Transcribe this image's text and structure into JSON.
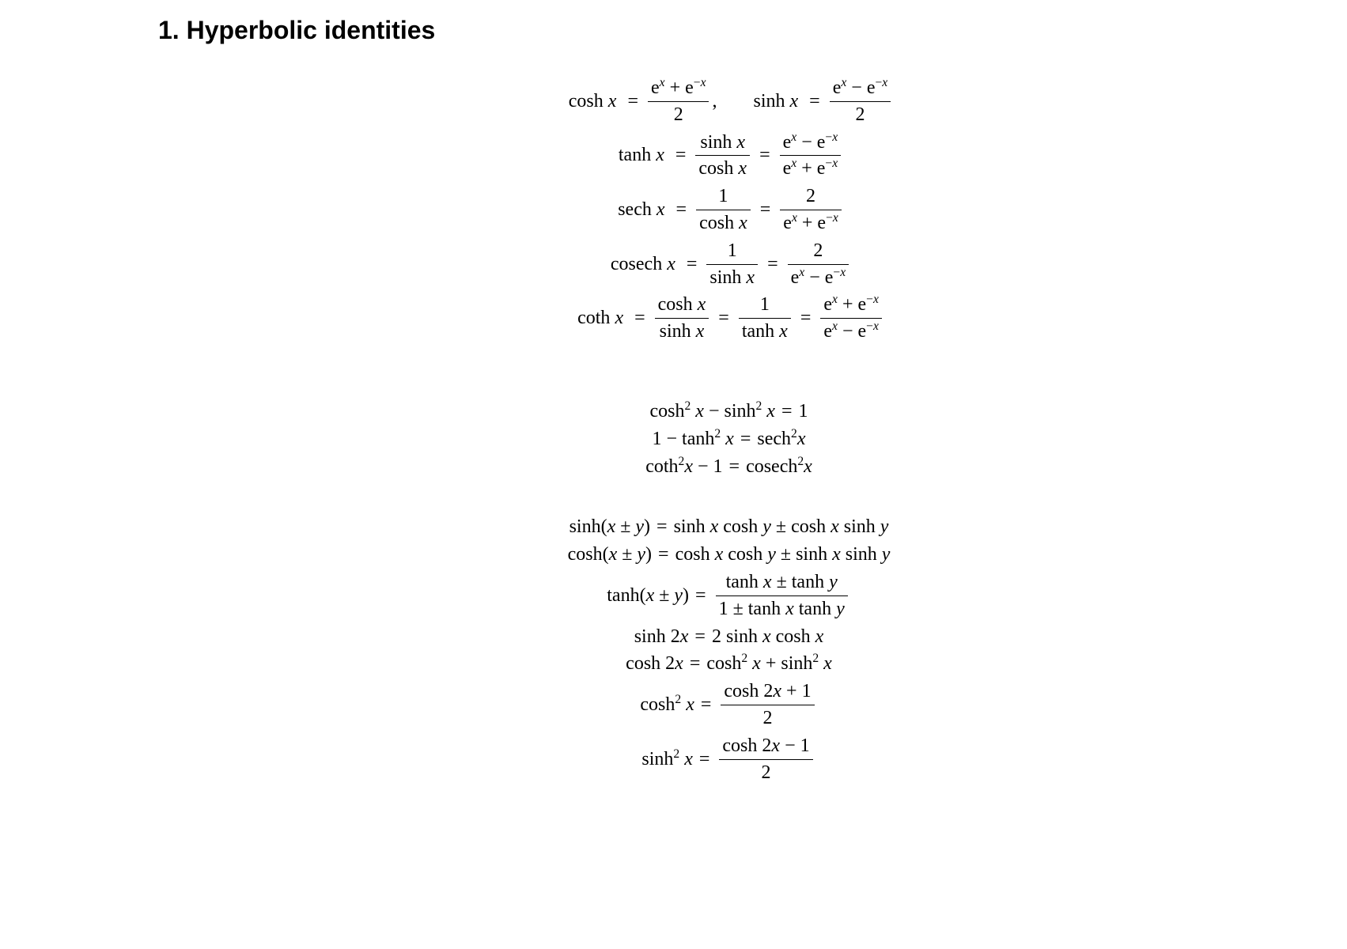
{
  "title": "1. Hyperbolic identities",
  "font": {
    "heading_family": "Helvetica",
    "heading_size_pt": 24,
    "body_family": "Times",
    "body_size_pt": 18,
    "text_color": "#000000",
    "background_color": "#ffffff"
  },
  "definitions": {
    "cosh": {
      "lhs": "cosh x",
      "rhs_num": "eˣ + e⁻ˣ",
      "rhs_den": "2"
    },
    "sinh": {
      "lhs": "sinh x",
      "rhs_num": "eˣ − e⁻ˣ",
      "rhs_den": "2"
    },
    "tanh": {
      "lhs": "tanh x",
      "step1_num": "sinh x",
      "step1_den": "cosh x",
      "step2_num": "eˣ − e⁻ˣ",
      "step2_den": "eˣ + e⁻ˣ"
    },
    "sech": {
      "lhs": "sech x",
      "step1_num": "1",
      "step1_den": "cosh x",
      "step2_num": "2",
      "step2_den": "eˣ + e⁻ˣ"
    },
    "cosech": {
      "lhs": "cosech x",
      "step1_num": "1",
      "step1_den": "sinh x",
      "step2_num": "2",
      "step2_den": "eˣ − e⁻ˣ"
    },
    "coth": {
      "lhs": "coth x",
      "step1_num": "cosh x",
      "step1_den": "sinh x",
      "step2_num": "1",
      "step2_den": "tanh x",
      "step3_num": "eˣ + e⁻ˣ",
      "step3_den": "eˣ − e⁻ˣ"
    }
  },
  "pythag": {
    "l1_lhs": "cosh² x − sinh² x",
    "l1_rhs": "1",
    "l2_lhs": "1 − tanh² x",
    "l2_rhs": "sech²x",
    "l3_lhs": "coth²x − 1",
    "l3_rhs": "cosech²x"
  },
  "addition": {
    "sinh_sum": {
      "lhs": "sinh(x ± y)",
      "rhs": "sinh x cosh y ± cosh x sinh y"
    },
    "cosh_sum": {
      "lhs": "cosh(x ± y)",
      "rhs": "cosh x cosh y ± sinh x sinh y"
    },
    "tanh_sum": {
      "lhs": "tanh(x ± y)",
      "rhs_num": "tanh x ± tanh y",
      "rhs_den": "1 ± tanh x tanh y"
    },
    "sinh_2x": {
      "lhs": "sinh 2x",
      "rhs": "2 sinh x cosh x"
    },
    "cosh_2x": {
      "lhs": "cosh 2x",
      "rhs": "cosh² x + sinh² x"
    },
    "cosh_sq": {
      "lhs": "cosh² x",
      "rhs_num": "cosh 2x + 1",
      "rhs_den": "2"
    },
    "sinh_sq": {
      "lhs": "sinh² x",
      "rhs_num": "cosh 2x − 1",
      "rhs_den": "2"
    }
  }
}
